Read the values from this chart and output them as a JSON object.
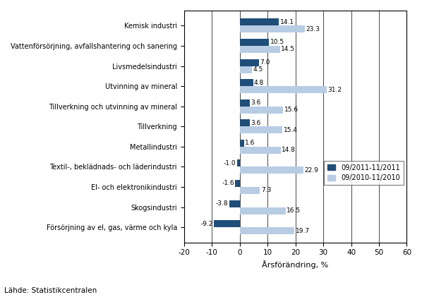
{
  "categories": [
    "Försörjning av el, gas, värme och kyla",
    "Skogsindustri",
    "El- och elektronikindustri",
    "Textil-, beklädnads- och läderindustri",
    "Metallindustri",
    "Tillverkning",
    "Tillverkning och utvinning av mineral",
    "Utvinning av mineral",
    "Livsmedelsindustri",
    "Vattenförsörjning, avfallshantering och sanering",
    "Kemisk industri"
  ],
  "values_2011": [
    -9.2,
    -3.8,
    -1.6,
    -1.0,
    1.6,
    3.6,
    3.6,
    4.8,
    7.0,
    10.5,
    14.1
  ],
  "values_2010": [
    19.7,
    16.5,
    7.3,
    22.9,
    14.8,
    15.4,
    15.6,
    31.2,
    4.5,
    14.5,
    23.3
  ],
  "color_2011": "#1f4e79",
  "color_2010": "#b8cce4",
  "legend_2011": "09/2011-11/2011",
  "legend_2010": "09/2010-11/2010",
  "xlabel": "Årsförändring, %",
  "xlim": [
    -20,
    60
  ],
  "xticks": [
    -20,
    -10,
    0,
    10,
    20,
    30,
    40,
    50,
    60
  ],
  "source": "Lähde: Statistikcentralen",
  "bar_height": 0.35
}
